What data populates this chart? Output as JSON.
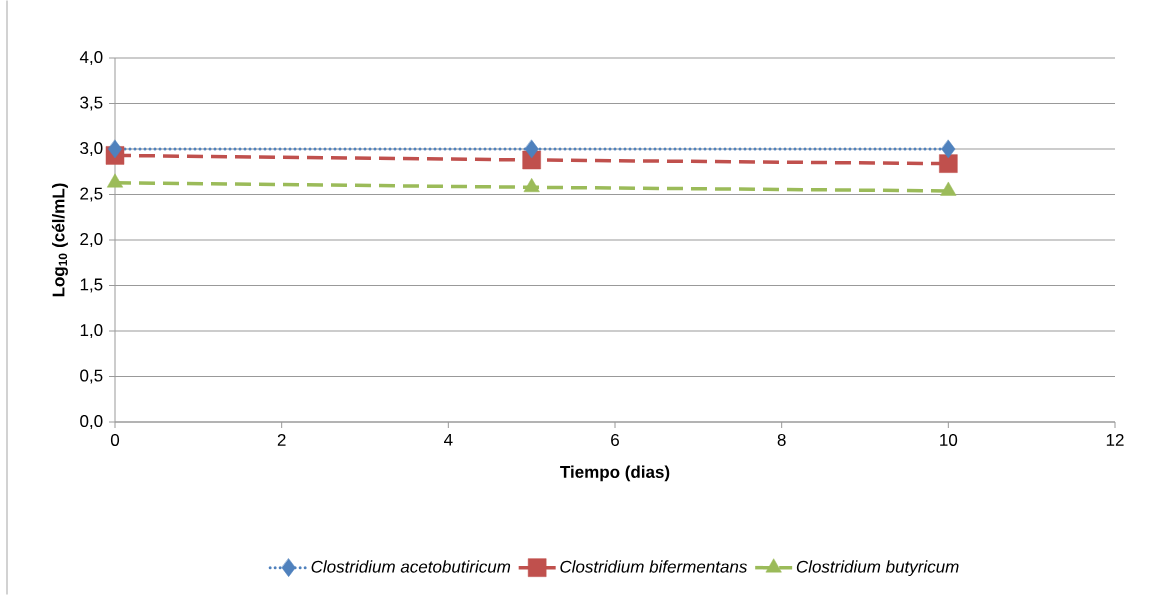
{
  "chart_data": {
    "type": "line",
    "xlabel": "Tiempo (dias)",
    "ylabel": "Log$_{10}$ (cél/mL)",
    "x": [
      0,
      5,
      10
    ],
    "series": [
      {
        "name": "Clostridium acetobutiricum",
        "color": "#4f81bd",
        "values": [
          3.0,
          3.0,
          3.0
        ],
        "marker": "diamond",
        "line_style": "dotted"
      },
      {
        "name": "Clostridium bifermentans",
        "color": "#c0504d",
        "values": [
          2.93,
          2.88,
          2.84
        ],
        "marker": "square",
        "line_style": "dashed"
      },
      {
        "name": "Clostridium butyricum",
        "color": "#9bbb59",
        "values": [
          2.63,
          2.58,
          2.54
        ],
        "marker": "triangle",
        "line_style": "dashed"
      }
    ],
    "xlim": [
      0,
      12
    ],
    "xticks": [
      0,
      2,
      4,
      6,
      8,
      10,
      12
    ],
    "ylim": [
      0,
      4
    ],
    "yticks": [
      {
        "value": 0,
        "label": "0,0"
      },
      {
        "value": 0.5,
        "label": "0,5"
      },
      {
        "value": 1,
        "label": "1,0"
      },
      {
        "value": 1.5,
        "label": "1,5"
      },
      {
        "value": 2,
        "label": "2,0"
      },
      {
        "value": 2.5,
        "label": "2,5"
      },
      {
        "value": 3,
        "label": "3,0"
      },
      {
        "value": 3.5,
        "label": "3,5"
      },
      {
        "value": 4,
        "label": "4,0"
      }
    ],
    "grid": "y",
    "legend": "bottom"
  }
}
